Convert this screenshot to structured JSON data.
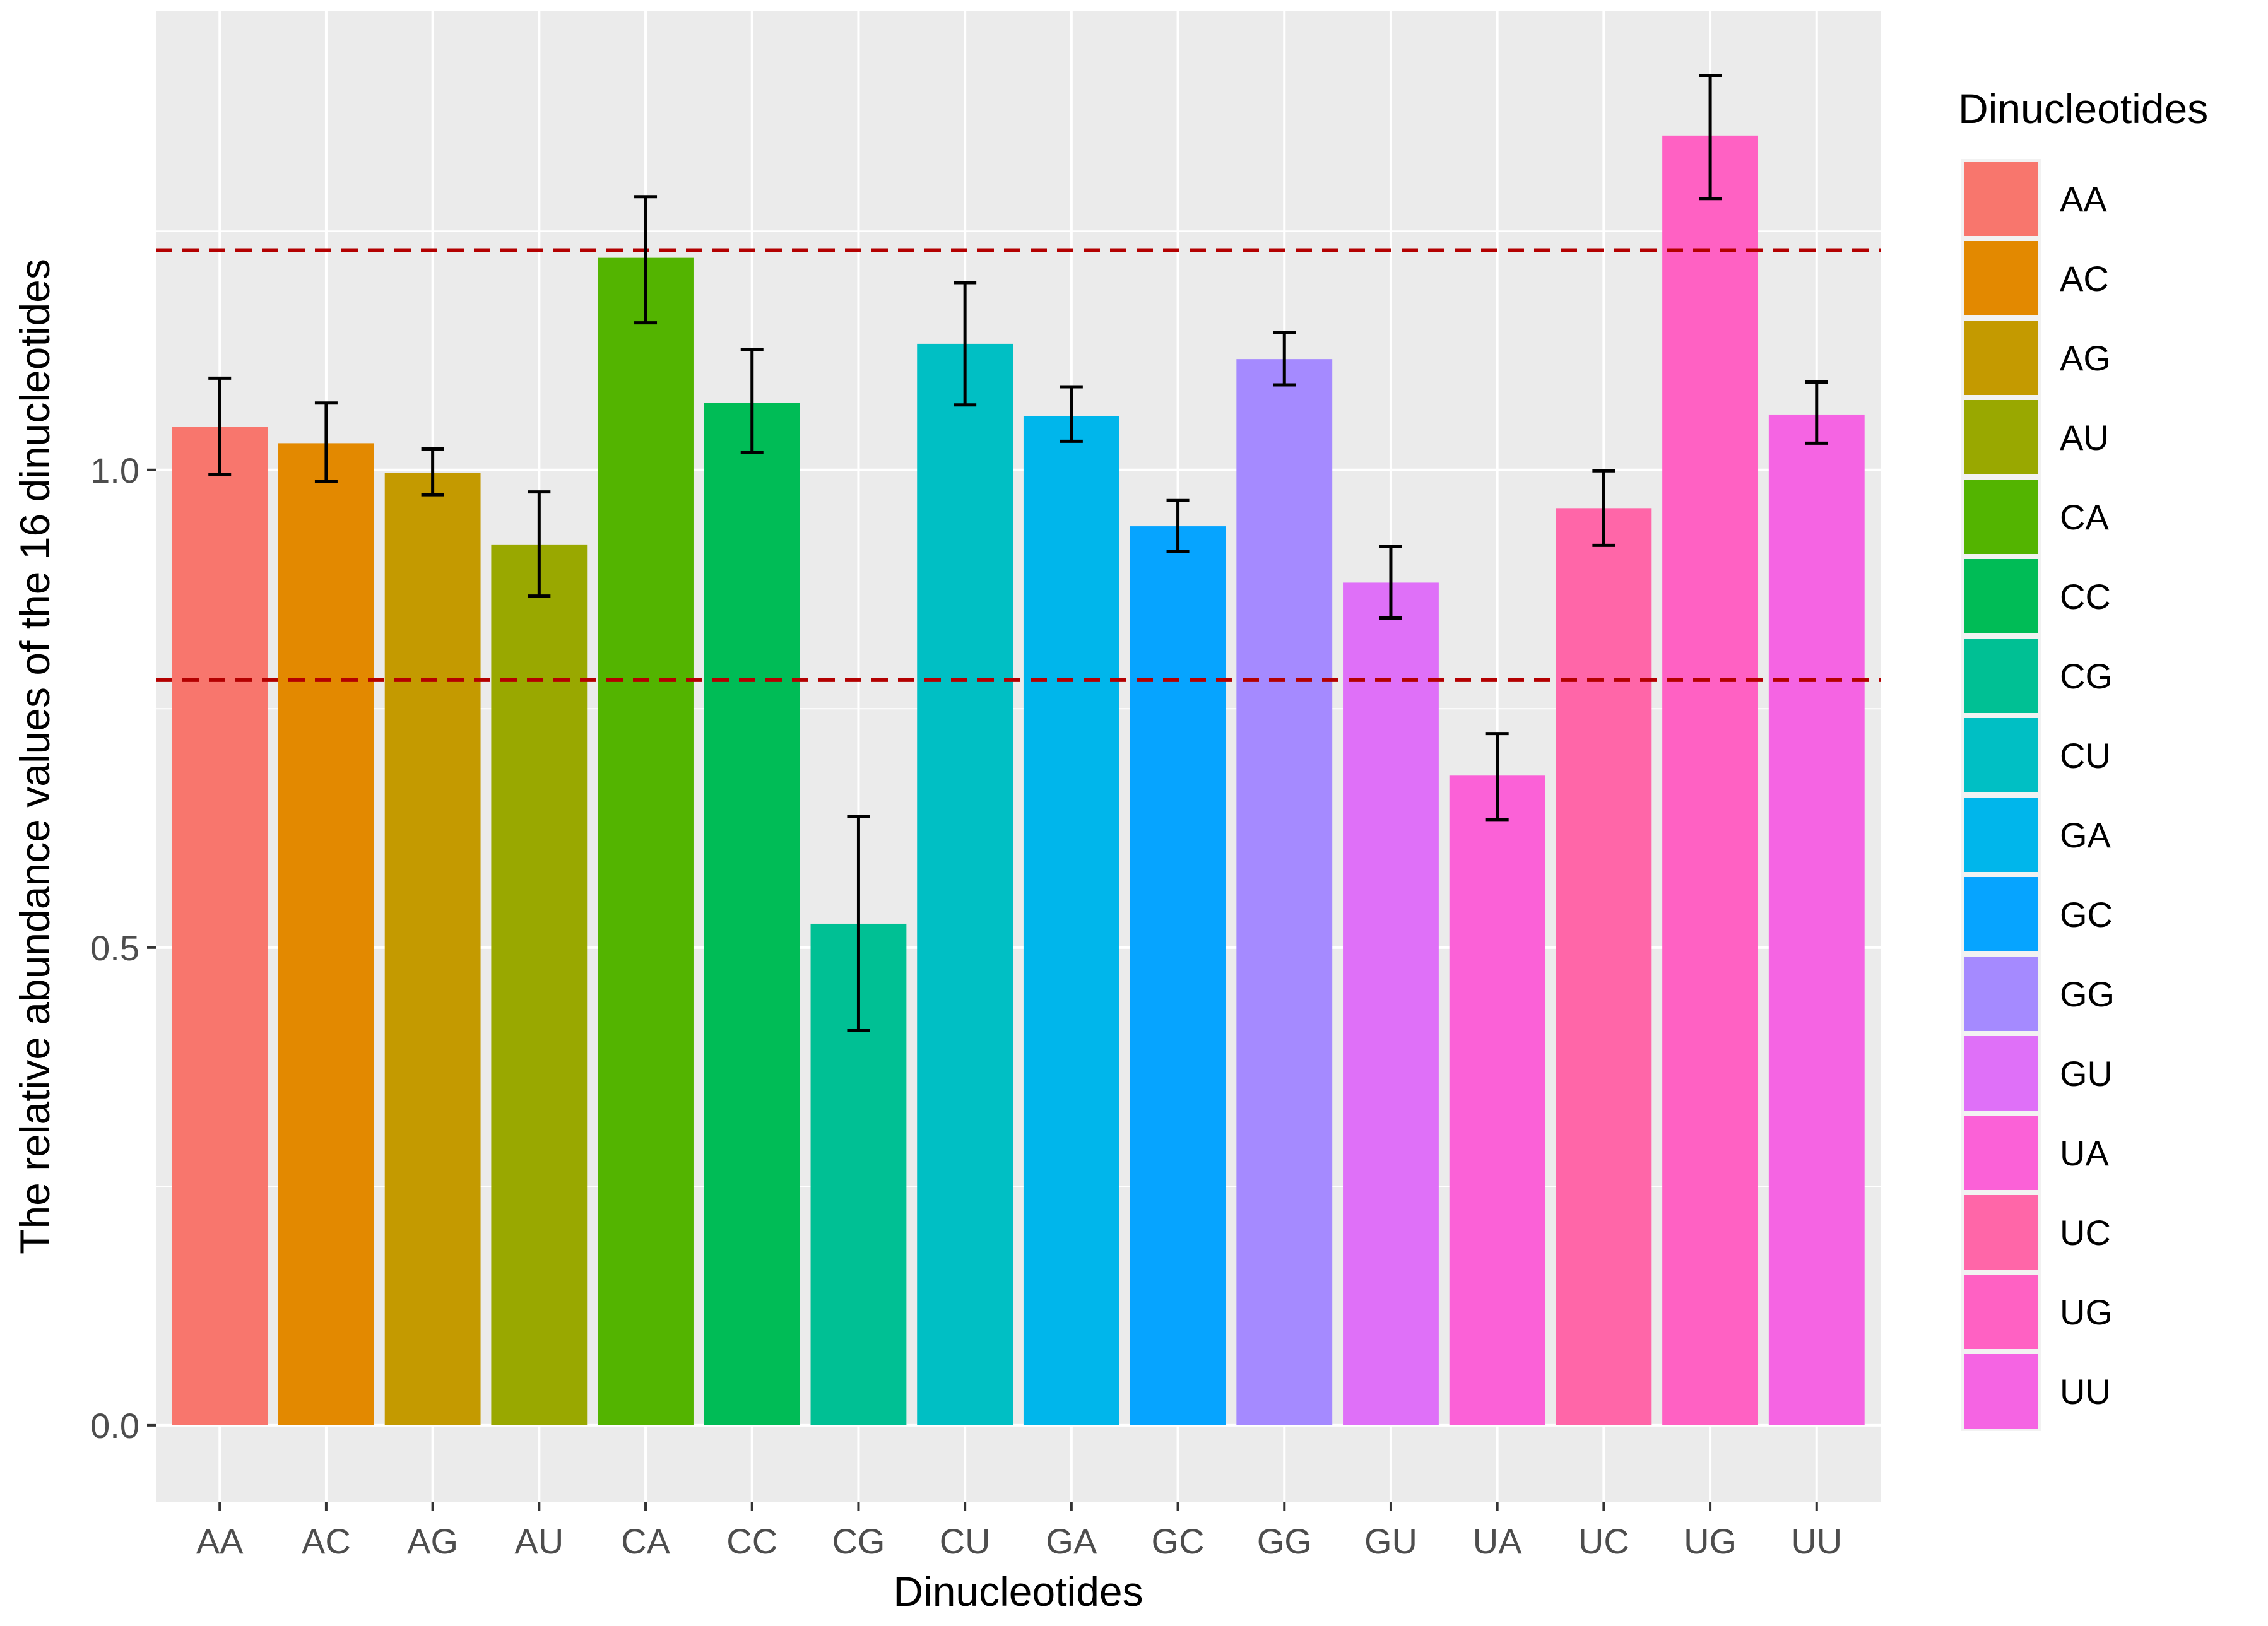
{
  "chart_data": {
    "type": "bar",
    "xlabel": "Dinucleotides",
    "ylabel": "The relative abundance values of the 16 dinucleotides",
    "ylim": [
      -0.08,
      1.48
    ],
    "y_ticks": [
      0.0,
      0.5,
      1.0
    ],
    "y_tick_labels": [
      "0.0",
      "0.5",
      "1.0"
    ],
    "categories": [
      "AA",
      "AC",
      "AG",
      "AU",
      "CA",
      "CC",
      "CG",
      "CU",
      "GA",
      "GC",
      "GG",
      "GU",
      "UA",
      "UC",
      "UG",
      "UU"
    ],
    "values": [
      1.045,
      1.028,
      0.997,
      0.922,
      1.222,
      1.07,
      0.525,
      1.132,
      1.056,
      0.941,
      1.116,
      0.882,
      0.68,
      0.96,
      1.35,
      1.058
    ],
    "error_low": [
      0.995,
      0.988,
      0.974,
      0.868,
      1.154,
      1.018,
      0.413,
      1.068,
      1.03,
      0.915,
      1.089,
      0.845,
      0.634,
      0.921,
      1.284,
      1.028
    ],
    "error_high": [
      1.096,
      1.07,
      1.022,
      0.977,
      1.286,
      1.126,
      0.637,
      1.196,
      1.087,
      0.968,
      1.144,
      0.92,
      0.724,
      0.999,
      1.413,
      1.092
    ],
    "colors": [
      "#F8766D",
      "#E38900",
      "#C49A00",
      "#99A800",
      "#53B400",
      "#00BC56",
      "#00C094",
      "#00BFC4",
      "#00B6EB",
      "#06A4FF",
      "#A58AFF",
      "#DF70F8",
      "#FB61D7",
      "#FF66A8",
      "#FF61C3",
      "#F564E3"
    ],
    "reference_lines": [
      1.23,
      0.78
    ],
    "reference_line_color": "#B30000",
    "panel_background": "#EBEBEB",
    "grid": true,
    "legend": {
      "title": "Dinucleotides",
      "position": "right",
      "labels": [
        "AA",
        "AC",
        "AG",
        "AU",
        "CA",
        "CC",
        "CG",
        "CU",
        "GA",
        "GC",
        "GG",
        "GU",
        "UA",
        "UC",
        "UG",
        "UU"
      ]
    }
  }
}
